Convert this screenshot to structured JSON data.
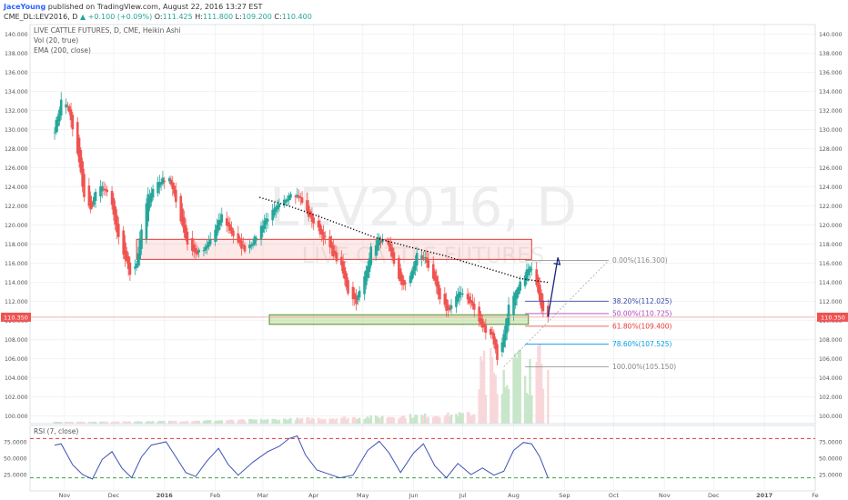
{
  "header": {
    "author": "JaceYoung",
    "published_text": "published on TradingView.com, August 22, 2016 13:27 EST",
    "symbol": "CME_DL:LEV2016, D",
    "change_text": "+0.100 (+0.09%)",
    "ohlc": [
      {
        "label": "O:",
        "value": "111.425"
      },
      {
        "label": "H:",
        "value": "111.800"
      },
      {
        "label": "L:",
        "value": "109.200"
      },
      {
        "label": "C:",
        "value": "110.400"
      }
    ]
  },
  "legend": {
    "title": "LIVE CATTLE FUTURES, D, CME, Heikin Ashi",
    "vol": "Vol (20, true)",
    "ema": "EMA (200, close)",
    "rsi": "RSI (7, close)"
  },
  "watermark": {
    "symbol": "LEV2016, D",
    "name": "LIVE CATTLE FUTURES"
  },
  "colors": {
    "up": "#26a69a",
    "down": "#ef5350",
    "ema": "#000000",
    "rsi": "#3f51b5",
    "accent": "#2962ff"
  },
  "chart_data": [
    {
      "type": "candlestick",
      "x_ticks": [
        "Nov",
        "Dec",
        "2016",
        "Feb",
        "Mar",
        "Apr",
        "May",
        "Jun",
        "Jul",
        "Aug",
        "Sep",
        "Oct",
        "Nov",
        "Dec",
        "2017",
        "Fe"
      ],
      "y_ticks": [
        "140.000",
        "138.000",
        "136.000",
        "134.000",
        "132.000",
        "130.000",
        "128.000",
        "126.000",
        "124.000",
        "122.000",
        "120.000",
        "118.000",
        "116.000",
        "114.000",
        "112.000",
        "110.000",
        "108.000",
        "106.000",
        "104.000",
        "102.000",
        "100.000"
      ],
      "ylim": [
        99.2,
        141.0
      ],
      "last_price_label": "110.350",
      "last_price": 110.35,
      "price_path": [
        [
          "2015-10-26",
          130.0
        ],
        [
          "2015-10-30",
          133.0
        ],
        [
          "2015-11-03",
          132.5
        ],
        [
          "2015-11-06",
          130.0
        ],
        [
          "2015-11-10",
          126.5
        ],
        [
          "2015-11-13",
          123.0
        ],
        [
          "2015-11-17",
          121.5
        ],
        [
          "2015-11-20",
          123.5
        ],
        [
          "2015-11-25",
          124.0
        ],
        [
          "2015-11-30",
          122.0
        ],
        [
          "2015-12-03",
          119.0
        ],
        [
          "2015-12-08",
          116.5
        ],
        [
          "2015-12-11",
          115.0
        ],
        [
          "2015-12-15",
          116.0
        ],
        [
          "2015-12-18",
          119.5
        ],
        [
          "2015-12-22",
          123.0
        ],
        [
          "2015-12-28",
          124.5
        ],
        [
          "2016-01-04",
          125.0
        ],
        [
          "2016-01-07",
          123.0
        ],
        [
          "2016-01-12",
          120.0
        ],
        [
          "2016-01-15",
          118.0
        ],
        [
          "2016-01-20",
          117.0
        ],
        [
          "2016-01-26",
          117.5
        ],
        [
          "2016-02-01",
          119.5
        ],
        [
          "2016-02-05",
          121.0
        ],
        [
          "2016-02-10",
          119.5
        ],
        [
          "2016-02-15",
          118.0
        ],
        [
          "2016-02-19",
          117.5
        ],
        [
          "2016-02-25",
          118.5
        ],
        [
          "2016-03-02",
          120.5
        ],
        [
          "2016-03-08",
          121.5
        ],
        [
          "2016-03-14",
          122.5
        ],
        [
          "2016-03-18",
          123.5
        ],
        [
          "2016-03-23",
          123.0
        ],
        [
          "2016-03-29",
          121.0
        ],
        [
          "2016-04-04",
          119.5
        ],
        [
          "2016-04-08",
          118.5
        ],
        [
          "2016-04-13",
          117.0
        ],
        [
          "2016-04-18",
          115.5
        ],
        [
          "2016-04-22",
          113.0
        ],
        [
          "2016-04-27",
          112.0
        ],
        [
          "2016-05-02",
          114.5
        ],
        [
          "2016-05-06",
          117.5
        ],
        [
          "2016-05-11",
          118.5
        ],
        [
          "2016-05-16",
          118.0
        ],
        [
          "2016-05-20",
          116.0
        ],
        [
          "2016-05-25",
          113.5
        ],
        [
          "2016-05-31",
          115.0
        ],
        [
          "2016-06-03",
          117.0
        ],
        [
          "2016-06-08",
          116.5
        ],
        [
          "2016-06-13",
          114.5
        ],
        [
          "2016-06-17",
          112.0
        ],
        [
          "2016-06-22",
          111.0
        ],
        [
          "2016-06-27",
          112.5
        ],
        [
          "2016-07-01",
          113.0
        ],
        [
          "2016-07-07",
          111.5
        ],
        [
          "2016-07-12",
          109.5
        ],
        [
          "2016-07-15",
          109.0
        ],
        [
          "2016-07-19",
          108.5
        ],
        [
          "2016-07-22",
          106.0
        ],
        [
          "2016-07-26",
          108.5
        ],
        [
          "2016-07-29",
          111.5
        ],
        [
          "2016-08-03",
          113.0
        ],
        [
          "2016-08-08",
          115.0
        ],
        [
          "2016-08-11",
          115.5
        ],
        [
          "2016-08-15",
          114.0
        ],
        [
          "2016-08-18",
          111.5
        ],
        [
          "2016-08-22",
          110.4
        ]
      ],
      "ema_200": [
        [
          "2016-02-28",
          122.9
        ],
        [
          "2016-03-15",
          122.1
        ],
        [
          "2016-04-01",
          121.1
        ],
        [
          "2016-04-20",
          119.9
        ],
        [
          "2016-05-10",
          118.6
        ],
        [
          "2016-06-01",
          117.6
        ],
        [
          "2016-06-20",
          116.8
        ],
        [
          "2016-07-05",
          116.0
        ],
        [
          "2016-07-25",
          115.0
        ],
        [
          "2016-08-05",
          114.4
        ],
        [
          "2016-08-22",
          114.0
        ]
      ],
      "zones": [
        {
          "kind": "resistance",
          "from": "2015-12-15",
          "to": "2016-08-12",
          "price_low": 116.4,
          "price_high": 118.5
        },
        {
          "kind": "support",
          "from": "2016-03-05",
          "to": "2016-08-10",
          "price_low": 109.6,
          "price_high": 110.6
        }
      ],
      "fibonacci": {
        "from": "2016-08-08",
        "to": "2016-09-28",
        "levels": [
          {
            "label": "0.00%(116.300)",
            "price": 116.3,
            "color": "#888888"
          },
          {
            "label": "38.20%(112.025)",
            "price": 112.025,
            "color": "#3949ab"
          },
          {
            "label": "50.00%(110.725)",
            "price": 110.725,
            "color": "#ab47bc"
          },
          {
            "label": "61.80%(109.400)",
            "price": 109.4,
            "color": "#e53935"
          },
          {
            "label": "78.60%(107.525)",
            "price": 107.525,
            "color": "#039be5"
          },
          {
            "label": "100.00%(105.150)",
            "price": 105.15,
            "color": "#888888"
          }
        ]
      },
      "projection_arrow": {
        "from": [
          "2016-08-22",
          110.4
        ],
        "to": [
          "2016-08-28",
          116.6
        ]
      }
    },
    {
      "type": "line",
      "name": "RSI (7, close)",
      "y_ticks": [
        "75.0000",
        "50.0000",
        "25.0000"
      ],
      "ylim": [
        0,
        100
      ],
      "overbought": 80,
      "oversold": 20,
      "values": [
        [
          "2015-10-26",
          70
        ],
        [
          "2015-10-30",
          72
        ],
        [
          "2015-11-06",
          40
        ],
        [
          "2015-11-12",
          25
        ],
        [
          "2015-11-18",
          18
        ],
        [
          "2015-11-24",
          48
        ],
        [
          "2015-11-30",
          60
        ],
        [
          "2015-12-06",
          35
        ],
        [
          "2015-12-12",
          20
        ],
        [
          "2015-12-18",
          52
        ],
        [
          "2015-12-24",
          70
        ],
        [
          "2016-01-02",
          75
        ],
        [
          "2016-01-08",
          52
        ],
        [
          "2016-01-14",
          28
        ],
        [
          "2016-01-20",
          22
        ],
        [
          "2016-01-27",
          46
        ],
        [
          "2016-02-03",
          65
        ],
        [
          "2016-02-09",
          40
        ],
        [
          "2016-02-15",
          24
        ],
        [
          "2016-02-24",
          44
        ],
        [
          "2016-03-04",
          60
        ],
        [
          "2016-03-11",
          68
        ],
        [
          "2016-03-17",
          80
        ],
        [
          "2016-03-22",
          84
        ],
        [
          "2016-03-27",
          55
        ],
        [
          "2016-04-03",
          32
        ],
        [
          "2016-04-10",
          26
        ],
        [
          "2016-04-17",
          20
        ],
        [
          "2016-04-25",
          24
        ],
        [
          "2016-05-04",
          62
        ],
        [
          "2016-05-11",
          76
        ],
        [
          "2016-05-17",
          58
        ],
        [
          "2016-05-24",
          28
        ],
        [
          "2016-06-01",
          58
        ],
        [
          "2016-06-07",
          72
        ],
        [
          "2016-06-14",
          38
        ],
        [
          "2016-06-21",
          20
        ],
        [
          "2016-06-28",
          42
        ],
        [
          "2016-07-06",
          25
        ],
        [
          "2016-07-13",
          35
        ],
        [
          "2016-07-20",
          24
        ],
        [
          "2016-07-26",
          30
        ],
        [
          "2016-08-01",
          62
        ],
        [
          "2016-08-07",
          74
        ],
        [
          "2016-08-12",
          72
        ],
        [
          "2016-08-17",
          52
        ],
        [
          "2016-08-22",
          20
        ]
      ]
    }
  ]
}
